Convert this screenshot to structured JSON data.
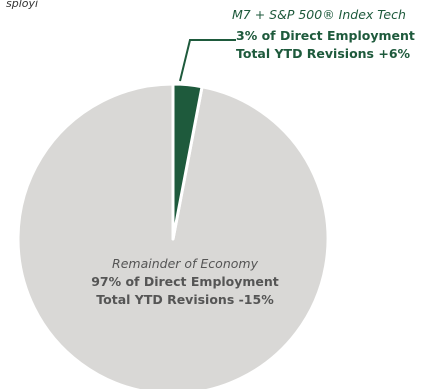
{
  "top_label_cropped": "sployi",
  "chart_data": {
    "type": "pie",
    "slices": [
      {
        "name": "M7 + S&P 500® Index Tech",
        "value": 3,
        "line1": "3% of Direct Employment",
        "line2": "Total YTD Revisions +6%",
        "color": "#1e5a3c"
      },
      {
        "name": "Remainder of Economy",
        "value": 97,
        "line1": "97% of Direct Employment",
        "line2": "Total YTD Revisions -15%",
        "color": "#d9d8d6"
      }
    ]
  }
}
